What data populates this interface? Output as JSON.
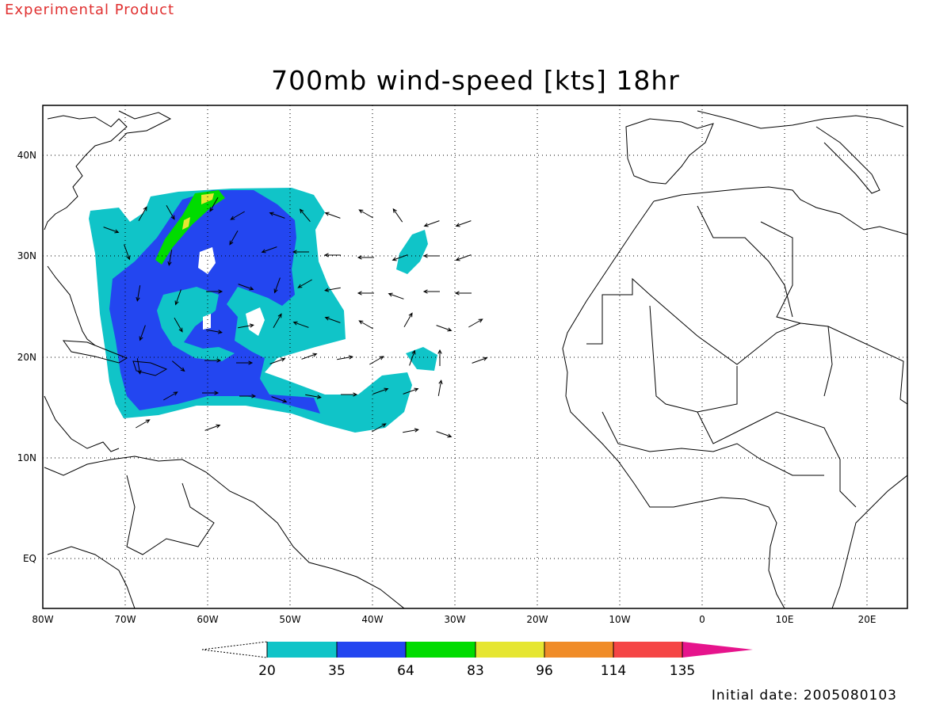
{
  "header": {
    "product_note": "Experimental Product",
    "title": "700mb wind-speed [kts] 18hr",
    "initial_date": "Initial date: 2005080103"
  },
  "map": {
    "lon_range": [
      -80,
      25
    ],
    "lat_range": [
      -6,
      45
    ],
    "lat_labels": [
      "40N",
      "30N",
      "20N",
      "10N",
      "EQ"
    ],
    "lon_labels": [
      "80W",
      "70W",
      "60W",
      "50W",
      "40W",
      "30W",
      "20W",
      "10W",
      "0",
      "10E",
      "20E"
    ],
    "grid": "dotted"
  },
  "colorbar": {
    "values": [
      "20",
      "35",
      "64",
      "83",
      "96",
      "114",
      "135"
    ],
    "colors": [
      "#10c4c8",
      "#2346f0",
      "#00dc00",
      "#e6e632",
      "#f08c28",
      "#f54646",
      "#e6148c"
    ]
  }
}
